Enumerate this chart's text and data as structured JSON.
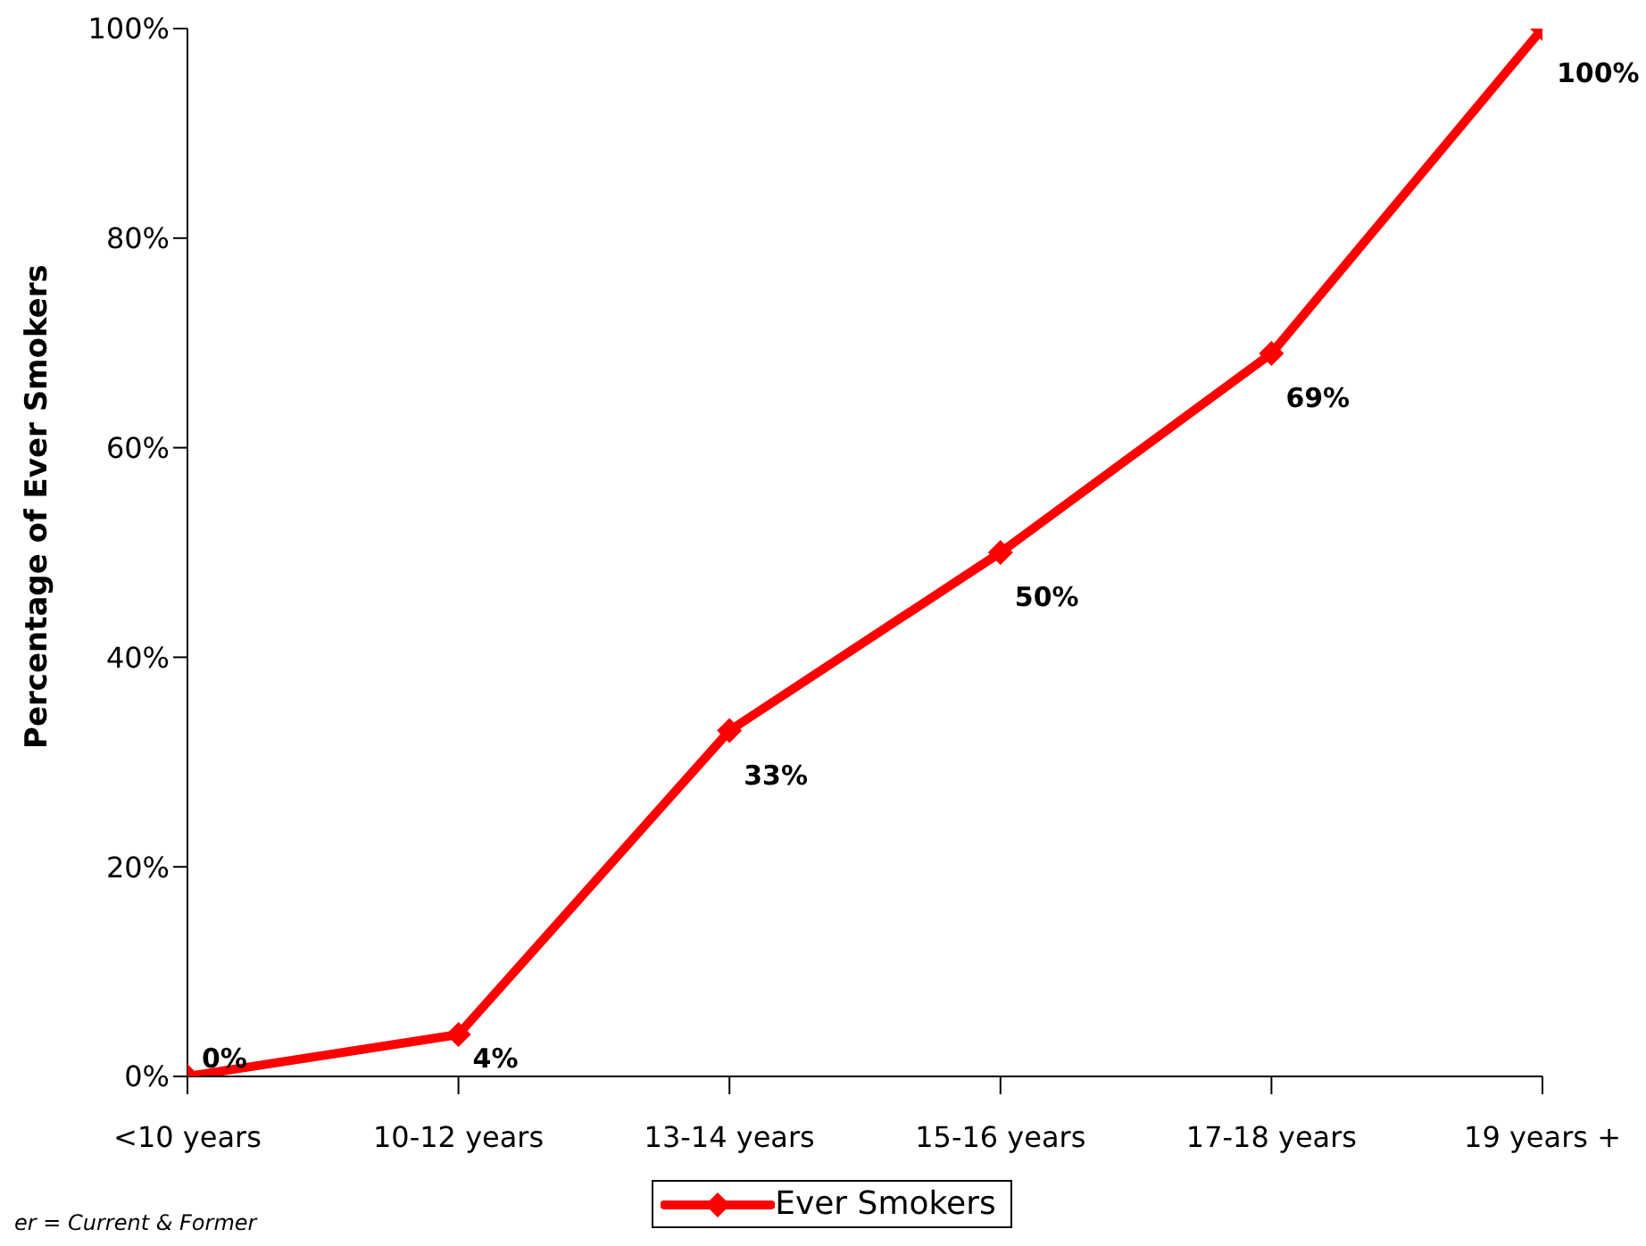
{
  "chart_data": {
    "type": "line",
    "ylabel": "Percentage of Ever Smokers",
    "categories": [
      "<10 years",
      "10-12 years",
      "13-14 years",
      "15-16 years",
      "17-18 years",
      "19 years +"
    ],
    "series": [
      {
        "name": "Ever Smokers",
        "color": "#ff0000",
        "values": [
          0,
          4,
          33,
          50,
          69,
          100
        ],
        "value_labels": [
          "0%",
          "4%",
          "33%",
          "50%",
          "69%",
          "100%"
        ]
      }
    ],
    "ylim": [
      0,
      100
    ],
    "yticks": [
      {
        "value": 0,
        "label": "0%"
      },
      {
        "value": 20,
        "label": "20%"
      },
      {
        "value": 40,
        "label": "40%"
      },
      {
        "value": 60,
        "label": "60%"
      },
      {
        "value": 80,
        "label": "80%"
      },
      {
        "value": 100,
        "label": "100%"
      }
    ],
    "grid": false,
    "legend": "bottom",
    "marker": "diamond",
    "line_style": "solid",
    "annotations": [
      "er = Current & Former"
    ]
  }
}
